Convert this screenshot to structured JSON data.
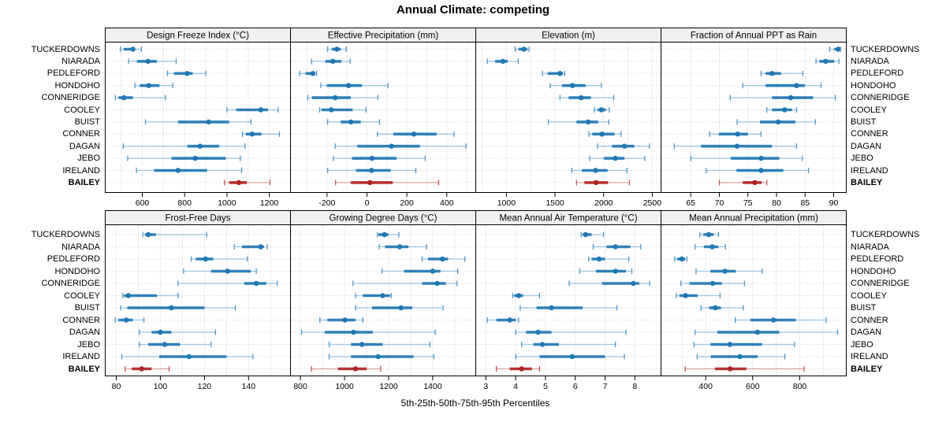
{
  "title": "Annual Climate: competing",
  "xlabel": "5th-25th-50th-75th-95th Percentiles",
  "percentiles": [
    "5th",
    "25th",
    "50th",
    "75th",
    "95th"
  ],
  "categories": [
    "TUCKERDOWNS",
    "NIARADA",
    "PEDLEFORD",
    "HONDOHO",
    "CONNERIDGE",
    "COOLEY",
    "BUIST",
    "CONNER",
    "DAGAN",
    "JEBO",
    "IRELAND",
    "BAILEY"
  ],
  "highlight_category": "BAILEY",
  "colors": {
    "series": "#1f77b4",
    "series_light": "#9cc4e1",
    "highlight": "#b22222",
    "highlight_light": "#dda3a3",
    "header_bg": "#f0f0f0",
    "grid": "#c9c9c9",
    "border": "#000000"
  },
  "chart_data": [
    {
      "type": "errorbar",
      "title": "Design Freeze Index (°C)",
      "xlim": [
        425,
        1300
      ],
      "ticks": [
        600,
        800,
        1000,
        1200
      ],
      "grid_start": 500,
      "grid_step": 100,
      "grid_end": 1300,
      "rows": [
        [
          497,
          512,
          556,
          566,
          595
        ],
        [
          535,
          575,
          627,
          669,
          760
        ],
        [
          719,
          750,
          812,
          838,
          900
        ],
        [
          565,
          588,
          631,
          681,
          744
        ],
        [
          473,
          488,
          513,
          556,
          709
        ],
        [
          1000,
          1044,
          1160,
          1194,
          1241
        ],
        [
          615,
          769,
          913,
          1010,
          1113
        ],
        [
          1073,
          1088,
          1119,
          1163,
          1248
        ],
        [
          510,
          813,
          873,
          963,
          1085
        ],
        [
          531,
          738,
          850,
          994,
          1063
        ],
        [
          573,
          656,
          769,
          906,
          1069
        ],
        [
          988,
          1010,
          1056,
          1094,
          1203
        ]
      ]
    },
    {
      "type": "errorbar",
      "title": "Effective Precipitation (mm)",
      "xlim": [
        -383,
        545
      ],
      "ticks": [
        -200,
        0,
        200,
        400
      ],
      "grid_start": -300,
      "grid_step": 100,
      "grid_end": 500,
      "rows": [
        [
          -197,
          -177,
          -151,
          -131,
          -104
        ],
        [
          -277,
          -208,
          -171,
          -128,
          -84
        ],
        [
          -337,
          -308,
          -271,
          -259,
          -252
        ],
        [
          -231,
          -201,
          -92,
          -25,
          105
        ],
        [
          -297,
          -275,
          -159,
          -81,
          55
        ],
        [
          -237,
          -228,
          -179,
          -72,
          -5
        ],
        [
          -197,
          -131,
          -81,
          -31,
          63
        ],
        [
          52,
          132,
          235,
          349,
          436
        ],
        [
          -159,
          -48,
          123,
          265,
          496
        ],
        [
          -168,
          -75,
          25,
          149,
          292
        ],
        [
          -197,
          -55,
          23,
          119,
          245
        ],
        [
          -157,
          -81,
          16,
          129,
          359
        ]
      ]
    },
    {
      "type": "errorbar",
      "title": "Elevation (m)",
      "xlim": [
        685,
        2590
      ],
      "ticks": [
        1000,
        1500,
        2000,
        2500
      ],
      "grid_start": 750,
      "grid_step": 250,
      "grid_end": 2500,
      "rows": [
        [
          1090,
          1125,
          1180,
          1215,
          1232
        ],
        [
          803,
          884,
          965,
          1014,
          1122
        ],
        [
          1370,
          1424,
          1551,
          1581,
          1600
        ],
        [
          1451,
          1572,
          1680,
          1815,
          1977
        ],
        [
          1551,
          1640,
          1770,
          1869,
          2104
        ],
        [
          1905,
          1937,
          1977,
          2023,
          2058
        ],
        [
          1432,
          1721,
          1842,
          1945,
          2053
        ],
        [
          1848,
          1883,
          1983,
          2112,
          2180
        ],
        [
          1937,
          2085,
          2215,
          2315,
          2471
        ],
        [
          1856,
          2004,
          2120,
          2215,
          2423
        ],
        [
          1672,
          1775,
          1918,
          2040,
          2239
        ],
        [
          1721,
          1802,
          1923,
          2045,
          2266
        ]
      ]
    },
    {
      "type": "errorbar",
      "title": "Fraction of Annual PPT as Rain",
      "xlim": [
        59.8,
        92.2
      ],
      "ticks": [
        65,
        70,
        75,
        80,
        85,
        90
      ],
      "grid_start": 60,
      "grid_step": 5,
      "grid_end": 90,
      "rows": [
        [
          89.3,
          90.1,
          90.8,
          91.0,
          91.2
        ],
        [
          86.9,
          87.5,
          88.6,
          90.1,
          90.9
        ],
        [
          77.3,
          78.1,
          79.2,
          80.8,
          84.6
        ],
        [
          74.1,
          78.1,
          83.5,
          85.0,
          87.8
        ],
        [
          71.9,
          79.2,
          82.5,
          86.4,
          90.3
        ],
        [
          78.3,
          79.2,
          81.4,
          82.7,
          83.5
        ],
        [
          73.1,
          77.1,
          80.3,
          83.3,
          86.8
        ],
        [
          68.3,
          69.9,
          73.2,
          75.0,
          77.3
        ],
        [
          62.1,
          66.8,
          73.1,
          79.2,
          83.5
        ],
        [
          65.0,
          72.0,
          77.3,
          80.5,
          84.5
        ],
        [
          67.7,
          73.0,
          77.3,
          81.2,
          85.6
        ],
        [
          70.0,
          74.1,
          76.2,
          77.4,
          78.3
        ]
      ]
    },
    {
      "type": "errorbar",
      "title": "Frost-Free Days",
      "xlim": [
        75,
        159
      ],
      "ticks": [
        80,
        100,
        120,
        140
      ],
      "grid_start": 80,
      "grid_step": 10,
      "grid_end": 150,
      "rows": [
        [
          92,
          93,
          94.5,
          98,
          121
        ],
        [
          133.5,
          137,
          145.5,
          147,
          148.5
        ],
        [
          114,
          116,
          120.5,
          124,
          139.5
        ],
        [
          110.5,
          123,
          130.5,
          141,
          143.5
        ],
        [
          108,
          138,
          143.5,
          148,
          153
        ],
        [
          83,
          83.5,
          85.5,
          98.5,
          108
        ],
        [
          82,
          85,
          105,
          120,
          134
        ],
        [
          79.5,
          81,
          84.5,
          87.5,
          92.5
        ],
        [
          90.5,
          96,
          100,
          105,
          125
        ],
        [
          90.5,
          94.5,
          102,
          109,
          123
        ],
        [
          82.5,
          99.5,
          113,
          130,
          142
        ],
        [
          84,
          87,
          91.5,
          96,
          104
        ]
      ]
    },
    {
      "type": "errorbar",
      "title": "Growing Degree Days (°C)",
      "xlim": [
        755,
        1595
      ],
      "ticks": [
        800,
        1000,
        1200,
        1400
      ],
      "grid_start": 800,
      "grid_step": 100,
      "grid_end": 1500,
      "rows": [
        [
          1149,
          1154,
          1181,
          1199,
          1246
        ],
        [
          1157,
          1184,
          1250,
          1290,
          1372
        ],
        [
          1352,
          1378,
          1444,
          1470,
          1546
        ],
        [
          1170,
          1270,
          1400,
          1435,
          1513
        ],
        [
          1038,
          1352,
          1420,
          1459,
          1510
        ],
        [
          1050,
          1083,
          1173,
          1206,
          1212
        ],
        [
          1050,
          1125,
          1256,
          1307,
          1447
        ],
        [
          888,
          922,
          1002,
          1050,
          1083
        ],
        [
          805,
          910,
          1041,
          1128,
          1411
        ],
        [
          930,
          1029,
          1079,
          1173,
          1387
        ],
        [
          930,
          1029,
          1152,
          1313,
          1405
        ],
        [
          850,
          970,
          1050,
          1100,
          1164
        ]
      ]
    },
    {
      "type": "errorbar",
      "title": "Mean Annual Air Temperature (°C)",
      "xlim": [
        2.66,
        8.88
      ],
      "ticks": [
        3,
        4,
        5,
        6,
        7,
        8
      ],
      "grid_start": 3,
      "grid_step": 1,
      "grid_end": 8,
      "rows": [
        [
          6.2,
          6.25,
          6.35,
          6.55,
          6.95
        ],
        [
          6.6,
          7.05,
          7.35,
          7.85,
          8.2
        ],
        [
          6.45,
          6.55,
          6.8,
          7.0,
          7.8
        ],
        [
          6.15,
          6.7,
          7.35,
          7.7,
          7.9
        ],
        [
          5.8,
          6.9,
          7.95,
          8.15,
          8.5
        ],
        [
          3.9,
          3.95,
          4.1,
          4.25,
          4.8
        ],
        [
          4.15,
          4.7,
          5.2,
          6.25,
          7.4
        ],
        [
          3.05,
          3.35,
          3.8,
          4.0,
          4.1
        ],
        [
          4.0,
          4.35,
          4.75,
          5.2,
          7.7
        ],
        [
          4.2,
          4.6,
          4.9,
          5.45,
          7.35
        ],
        [
          4.0,
          4.8,
          5.9,
          7.0,
          7.65
        ],
        [
          3.35,
          3.8,
          4.2,
          4.55,
          4.8
        ]
      ]
    },
    {
      "type": "errorbar",
      "title": "Mean Annual Precipitation (mm)",
      "xlim": [
        210,
        998
      ],
      "ticks": [
        400,
        600,
        800
      ],
      "grid_start": 300,
      "grid_step": 100,
      "grid_end": 900,
      "rows": [
        [
          375,
          390,
          413,
          434,
          454
        ],
        [
          355,
          392,
          428,
          454,
          484
        ],
        [
          268,
          279,
          299,
          313,
          320
        ],
        [
          359,
          420,
          482,
          528,
          640
        ],
        [
          294,
          331,
          430,
          469,
          565
        ],
        [
          275,
          288,
          314,
          366,
          461
        ],
        [
          380,
          415,
          441,
          465,
          560
        ],
        [
          526,
          590,
          688,
          783,
          912
        ],
        [
          355,
          450,
          620,
          713,
          961
        ],
        [
          350,
          420,
          503,
          640,
          778
        ],
        [
          364,
          422,
          545,
          621,
          737
        ],
        [
          313,
          439,
          504,
          573,
          819
        ]
      ]
    }
  ]
}
